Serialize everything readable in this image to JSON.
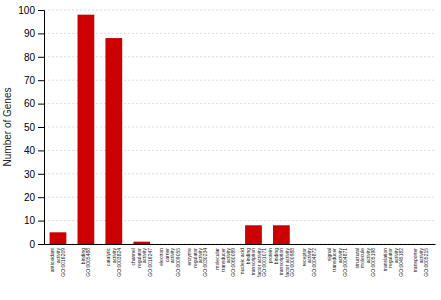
{
  "chart_data": {
    "type": "bar",
    "ylabel": "Number of Genes",
    "categories": [
      "antioxidant\nactivity\nGO:0016209",
      "binding\nGO:0005488",
      "catalytic\nactivity\nGO:0003824",
      "channel\nregulator\nactivity\nGO:0016247",
      "electron\ncarrier\nactivity\nGO:0009055",
      "enzyme\nregulator\nactivity\nGO:0030234",
      "molecular\ntransducer\nactivity\nGO:0060089",
      "nucleic acid\nbinding\ntranscription\nfactor activity\nGO:0001071",
      "protein\nbinding\ntranscription\nfactor activity\nGO:0000988",
      "receptor\nactivity\nGO:0004872",
      "signal\ntransducer\nactivity\nGO:0004871",
      "structural\nmolecule\nactivity\nGO:0005198",
      "translation\nregulator\nactivity\nGO:0045182",
      "transporter\nactivity\nGO:0005215"
    ],
    "values": [
      5,
      98,
      88,
      1,
      0,
      0,
      0,
      8,
      8,
      0,
      0,
      0,
      0,
      0
    ],
    "color": "#cc0000",
    "ylim": [
      0,
      100
    ],
    "yticks": [
      0,
      10,
      20,
      30,
      40,
      50,
      60,
      70,
      80,
      90,
      100
    ],
    "grid": true
  }
}
